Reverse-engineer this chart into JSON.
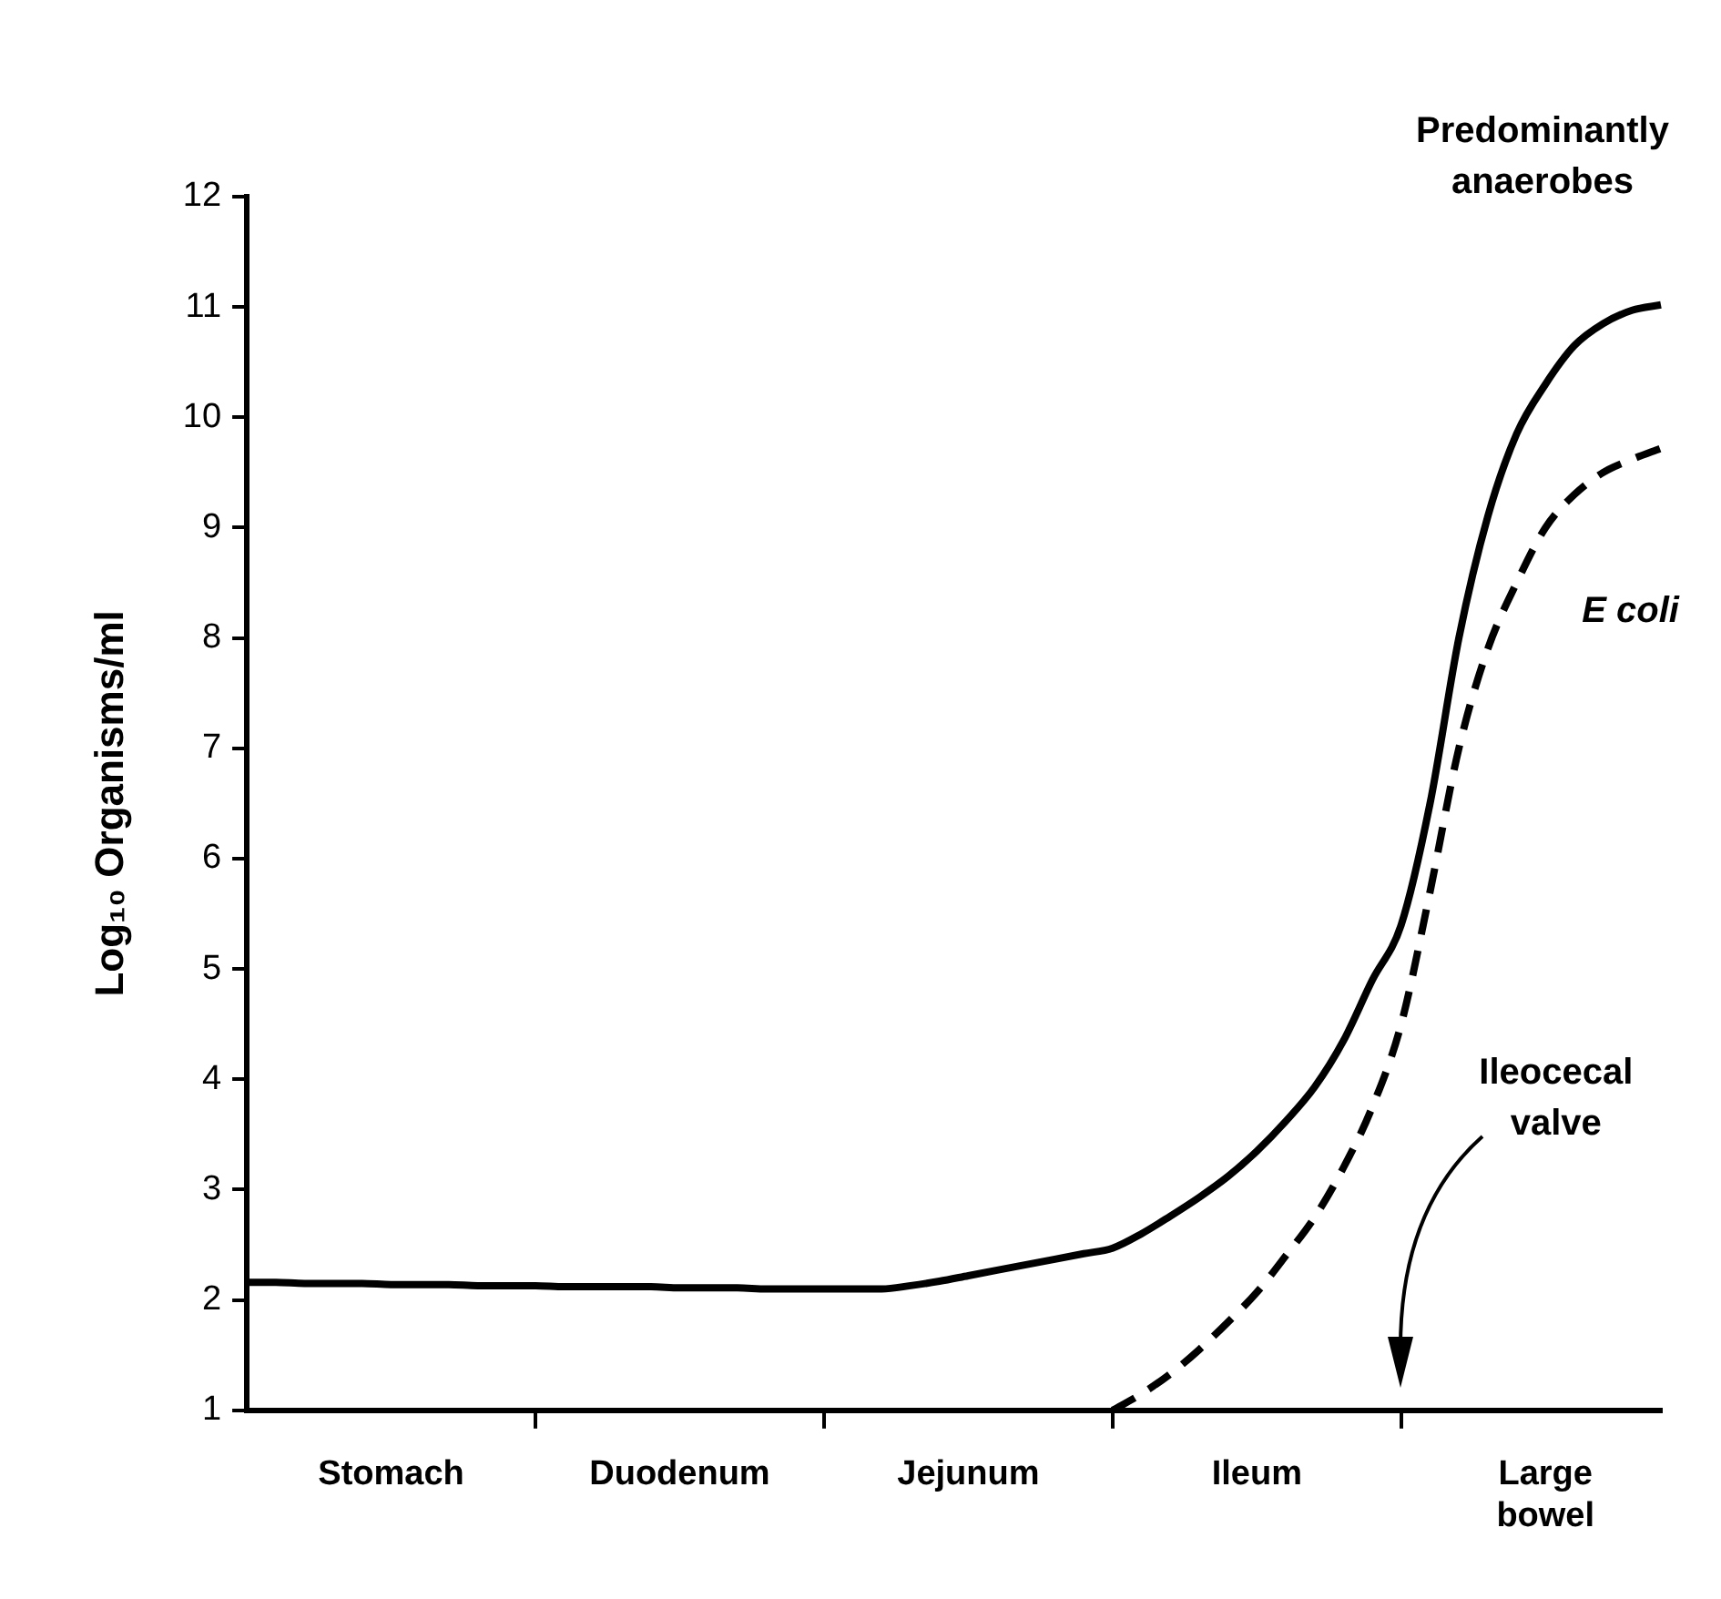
{
  "chart_data": {
    "type": "line",
    "ylabel": "Log₁₀ Organisms/ml",
    "ylim": [
      1,
      12
    ],
    "yticks": [
      1,
      2,
      3,
      4,
      5,
      6,
      7,
      8,
      9,
      10,
      11,
      12
    ],
    "categories": [
      null,
      null,
      null,
      null,
      null,
      "Stomach",
      null,
      null,
      null,
      null,
      null,
      null,
      null,
      null,
      null,
      "Duodenum",
      null,
      null,
      null,
      null,
      null,
      null,
      null,
      null,
      null,
      "Jejunum",
      null,
      null,
      null,
      null,
      null,
      null,
      null,
      null,
      null,
      "Ileum",
      null,
      null,
      null,
      null,
      null,
      null,
      null,
      null,
      null,
      "Large bowel",
      null,
      null,
      null,
      null
    ],
    "grid": false,
    "legend": false,
    "marker": "none",
    "series": [
      {
        "name": "Predominantly anaerobes",
        "color": "#000000",
        "line_style": "solid",
        "values": [
          2.16,
          2.16,
          2.15,
          2.15,
          2.15,
          2.14,
          2.14,
          2.14,
          2.13,
          2.13,
          2.13,
          2.12,
          2.12,
          2.12,
          2.12,
          2.11,
          2.11,
          2.11,
          2.1,
          2.1,
          2.1,
          2.1,
          2.1,
          2.13,
          2.17,
          2.22,
          2.27,
          2.32,
          2.37,
          2.42,
          2.47,
          2.6,
          2.76,
          2.93,
          3.12,
          3.35,
          3.62,
          3.93,
          4.35,
          4.9,
          5.4,
          6.5,
          8.0,
          9.1,
          9.85,
          10.3,
          10.65,
          10.85,
          10.97,
          11.02
        ]
      },
      {
        "name": "E coli",
        "color": "#000000",
        "line_style": "dashed",
        "values": [
          null,
          null,
          null,
          null,
          null,
          null,
          null,
          null,
          null,
          null,
          null,
          null,
          null,
          null,
          null,
          null,
          null,
          null,
          null,
          null,
          null,
          null,
          null,
          null,
          null,
          null,
          null,
          null,
          null,
          null,
          1.0,
          1.15,
          1.33,
          1.55,
          1.8,
          2.07,
          2.4,
          2.75,
          3.2,
          3.75,
          4.5,
          5.7,
          7.0,
          7.9,
          8.5,
          9.0,
          9.3,
          9.5,
          9.62,
          9.72
        ]
      }
    ],
    "annotations": [
      "Ileocecal valve"
    ]
  }
}
